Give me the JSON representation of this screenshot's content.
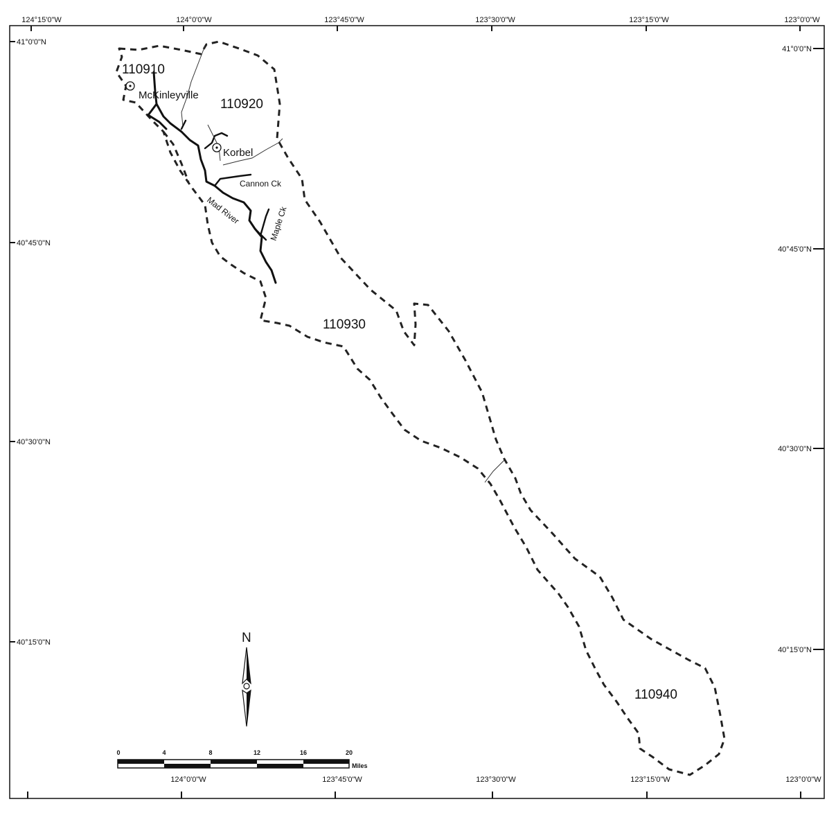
{
  "graticule": {
    "top_longitudes": [
      "124°15'0\"W",
      "124°0'0\"W",
      "123°45'0\"W",
      "123°30'0\"W",
      "123°15'0\"W",
      "123°0'0\"W"
    ],
    "bottom_longitudes": [
      "124°0'0\"W",
      "123°45'0\"W",
      "123°30'0\"W",
      "123°15'0\"W",
      "123°0'0\"W"
    ],
    "left_latitudes": [
      "41°0'0\"N",
      "40°45'0\"N",
      "40°30'0\"N",
      "40°15'0\"N"
    ],
    "right_latitudes": [
      "41°0'0\"N",
      "40°45'0\"N",
      "40°30'0\"N",
      "40°15'0\"N"
    ]
  },
  "watersheds": [
    "110910",
    "110920",
    "110930",
    "110940"
  ],
  "places": [
    "McKinleyville",
    "Korbel"
  ],
  "streams": [
    "Cannon Ck",
    "Mad River",
    "Maple Ck"
  ],
  "north_arrow": {
    "label": "N"
  },
  "scale_bar": {
    "ticks": [
      "0",
      "4",
      "8",
      "12",
      "16",
      "20"
    ],
    "unit": "Miles"
  }
}
